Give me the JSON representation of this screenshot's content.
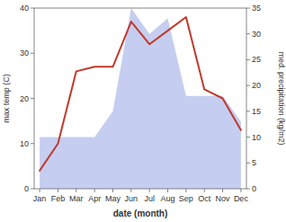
{
  "chart_data": {
    "type": "line",
    "xlabel": "date (month)",
    "ylabel": "max temp (C)",
    "y2label": "med. precipitation (kg/m2)",
    "categories": [
      "Jan",
      "Feb",
      "Mar",
      "Apr",
      "May",
      "Jun",
      "Jul",
      "Aug",
      "Sep",
      "Oct",
      "Nov",
      "Dec"
    ],
    "series": [
      {
        "type": "area",
        "axis": "y2",
        "color": "#c5cef0",
        "values": [
          10,
          10,
          10,
          10,
          15,
          35,
          30,
          33,
          18,
          18,
          18,
          13
        ]
      },
      {
        "type": "line",
        "color": "#c0392b",
        "values": [
          4,
          10,
          26,
          27,
          27,
          37,
          32,
          35,
          38,
          22,
          20,
          13
        ]
      }
    ],
    "ylim": [
      0,
      40
    ],
    "yticks": [
      0,
      10,
      20,
      30,
      40
    ],
    "y2lim": [
      0,
      35
    ],
    "y2ticks": [
      0,
      5,
      10,
      15,
      20,
      25,
      30,
      35
    ],
    "grid": false
  }
}
